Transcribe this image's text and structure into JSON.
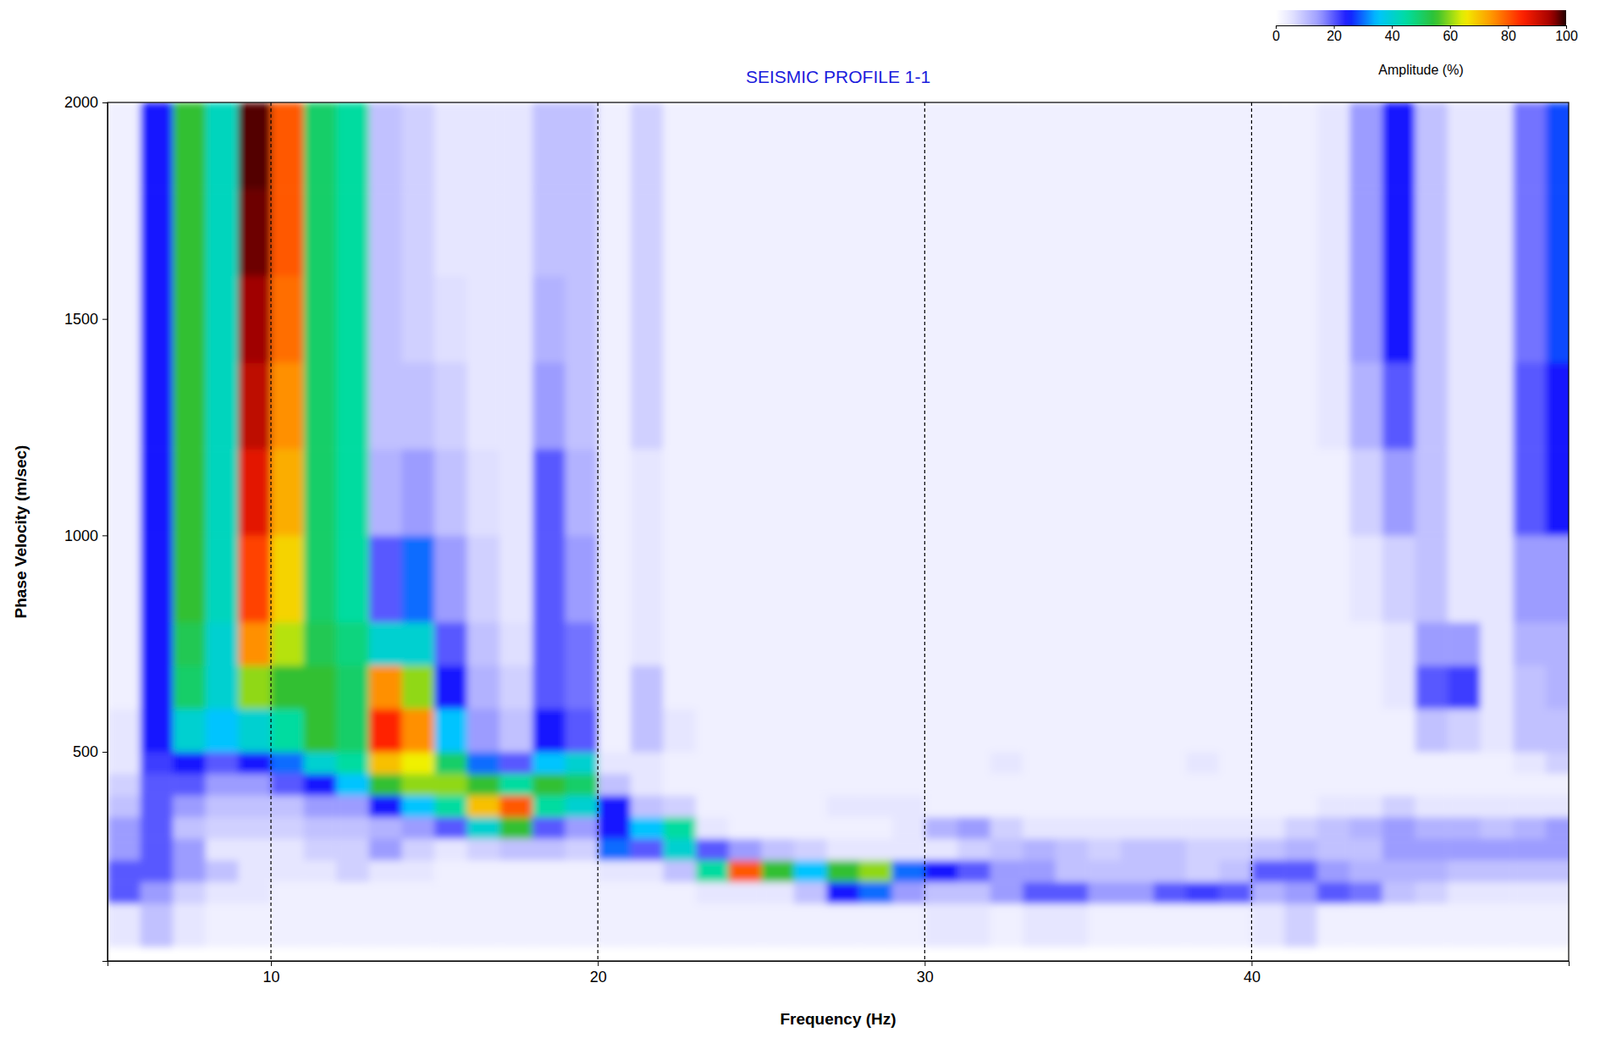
{
  "chart_data": {
    "type": "heatmap",
    "title": "SEISMIC PROFILE 1-1",
    "x_label": "Frequency (Hz)",
    "y_label": "Phase Velocity (m/sec)",
    "xlim": [
      5,
      49.7
    ],
    "ylim": [
      17,
      2000
    ],
    "xticks": [
      10,
      20,
      30,
      40
    ],
    "yticks": [
      500,
      1000,
      1500,
      2000
    ],
    "grid": "x",
    "x_edges": [
      5,
      6,
      7,
      8,
      9,
      10,
      11,
      12,
      13,
      14,
      15,
      16,
      17,
      18,
      19,
      20,
      21,
      22,
      23,
      24,
      25,
      26,
      27,
      28,
      29,
      30,
      31,
      32,
      33,
      34,
      35,
      36,
      37,
      38,
      39,
      40,
      41,
      42,
      43,
      44,
      45,
      46,
      47,
      48,
      49,
      50
    ],
    "y_edges": [
      50,
      150,
      200,
      250,
      300,
      350,
      400,
      450,
      500,
      600,
      700,
      800,
      1000,
      1200,
      1400,
      1600,
      1800,
      2000
    ],
    "z": [
      [
        5,
        20,
        20,
        15,
        15,
        10,
        8,
        5,
        5,
        3,
        3,
        3,
        3,
        3,
        3,
        3,
        3
      ],
      [
        10,
        15,
        20,
        20,
        20,
        20,
        20,
        22,
        25,
        25,
        25,
        25,
        25,
        25,
        25,
        25,
        25
      ],
      [
        5,
        8,
        15,
        15,
        10,
        15,
        20,
        25,
        40,
        50,
        52,
        55,
        55,
        55,
        55,
        55,
        55
      ],
      [
        3,
        5,
        10,
        5,
        8,
        10,
        15,
        20,
        35,
        40,
        40,
        42,
        42,
        42,
        42,
        42,
        42
      ],
      [
        3,
        5,
        5,
        5,
        8,
        10,
        15,
        25,
        40,
        60,
        75,
        82,
        88,
        92,
        95,
        97,
        98
      ],
      [
        3,
        3,
        5,
        5,
        8,
        10,
        20,
        30,
        45,
        55,
        62,
        68,
        72,
        75,
        78,
        80,
        80
      ],
      [
        3,
        3,
        5,
        8,
        10,
        15,
        25,
        40,
        55,
        55,
        52,
        50,
        50,
        50,
        50,
        50,
        50
      ],
      [
        3,
        3,
        8,
        8,
        10,
        15,
        35,
        45,
        50,
        50,
        48,
        45,
        45,
        45,
        45,
        45,
        45
      ],
      [
        3,
        3,
        5,
        15,
        12,
        25,
        55,
        70,
        85,
        75,
        40,
        20,
        12,
        10,
        10,
        10,
        10
      ],
      [
        3,
        3,
        5,
        8,
        15,
        35,
        60,
        65,
        75,
        60,
        40,
        30,
        15,
        10,
        8,
        8,
        8
      ],
      [
        3,
        3,
        3,
        5,
        20,
        45,
        60,
        50,
        35,
        25,
        20,
        15,
        10,
        8,
        6,
        5,
        5
      ],
      [
        3,
        3,
        3,
        8,
        40,
        70,
        55,
        30,
        15,
        12,
        10,
        8,
        6,
        5,
        5,
        5,
        5
      ],
      [
        3,
        3,
        3,
        10,
        55,
        80,
        45,
        20,
        10,
        8,
        6,
        5,
        5,
        5,
        5,
        5,
        5
      ],
      [
        3,
        3,
        3,
        10,
        20,
        45,
        55,
        35,
        25,
        20,
        20,
        20,
        20,
        15,
        12,
        10,
        10
      ],
      [
        3,
        3,
        3,
        8,
        15,
        40,
        50,
        40,
        20,
        18,
        18,
        15,
        12,
        10,
        10,
        10,
        10
      ],
      [
        3,
        3,
        5,
        30,
        25,
        25,
        10,
        5,
        3,
        3,
        3,
        3,
        3,
        3,
        3,
        3,
        3
      ],
      [
        3,
        3,
        5,
        20,
        35,
        10,
        5,
        5,
        10,
        10,
        5,
        5,
        5,
        8,
        8,
        8,
        8
      ],
      [
        3,
        3,
        10,
        40,
        45,
        8,
        3,
        3,
        5,
        3,
        3,
        3,
        3,
        3,
        3,
        3,
        3
      ],
      [
        3,
        5,
        45,
        20,
        5,
        3,
        3,
        3,
        3,
        3,
        3,
        3,
        3,
        3,
        3,
        3,
        3
      ],
      [
        3,
        5,
        80,
        15,
        3,
        3,
        3,
        3,
        3,
        3,
        3,
        3,
        3,
        3,
        3,
        3,
        3
      ],
      [
        3,
        5,
        55,
        10,
        3,
        3,
        3,
        3,
        3,
        3,
        3,
        3,
        3,
        3,
        3,
        3,
        3
      ],
      [
        3,
        10,
        35,
        8,
        3,
        3,
        3,
        3,
        3,
        3,
        3,
        3,
        3,
        3,
        3,
        3,
        3
      ],
      [
        3,
        25,
        55,
        5,
        3,
        5,
        3,
        3,
        3,
        3,
        3,
        3,
        3,
        3,
        3,
        3,
        3
      ],
      [
        3,
        30,
        60,
        5,
        3,
        5,
        3,
        3,
        3,
        3,
        3,
        3,
        3,
        3,
        3,
        3,
        3
      ],
      [
        3,
        15,
        30,
        5,
        5,
        5,
        3,
        3,
        3,
        3,
        3,
        3,
        3,
        3,
        3,
        3,
        3
      ],
      [
        5,
        10,
        25,
        5,
        12,
        3,
        3,
        3,
        3,
        3,
        3,
        3,
        3,
        3,
        3,
        3,
        3
      ],
      [
        5,
        10,
        20,
        8,
        15,
        3,
        3,
        3,
        3,
        3,
        3,
        3,
        3,
        3,
        3,
        3,
        3
      ],
      [
        3,
        15,
        15,
        10,
        8,
        3,
        3,
        5,
        3,
        3,
        3,
        3,
        3,
        3,
        3,
        3,
        3
      ],
      [
        5,
        20,
        15,
        12,
        5,
        3,
        3,
        3,
        3,
        3,
        3,
        3,
        3,
        3,
        3,
        3,
        3
      ],
      [
        5,
        20,
        10,
        10,
        5,
        3,
        3,
        3,
        3,
        3,
        3,
        3,
        3,
        3,
        3,
        3,
        3
      ],
      [
        3,
        15,
        10,
        8,
        5,
        3,
        3,
        3,
        3,
        3,
        3,
        3,
        3,
        3,
        3,
        3,
        3
      ],
      [
        3,
        15,
        10,
        10,
        5,
        3,
        3,
        3,
        3,
        3,
        3,
        3,
        3,
        3,
        3,
        3,
        3
      ],
      [
        3,
        20,
        10,
        10,
        5,
        3,
        3,
        3,
        3,
        3,
        3,
        3,
        3,
        3,
        3,
        3,
        3
      ],
      [
        3,
        22,
        8,
        8,
        5,
        3,
        3,
        5,
        3,
        3,
        3,
        3,
        3,
        3,
        3,
        3,
        3
      ],
      [
        3,
        20,
        10,
        8,
        5,
        3,
        3,
        3,
        3,
        3,
        3,
        3,
        3,
        3,
        3,
        3,
        3
      ],
      [
        5,
        12,
        20,
        10,
        5,
        3,
        3,
        3,
        3,
        3,
        3,
        3,
        3,
        3,
        3,
        3,
        3
      ],
      [
        8,
        15,
        20,
        12,
        8,
        3,
        3,
        3,
        3,
        3,
        3,
        3,
        3,
        3,
        3,
        3,
        3
      ],
      [
        3,
        20,
        15,
        10,
        10,
        5,
        3,
        3,
        3,
        3,
        3,
        3,
        3,
        5,
        5,
        5,
        5
      ],
      [
        3,
        18,
        12,
        10,
        12,
        5,
        3,
        3,
        3,
        3,
        3,
        5,
        8,
        12,
        15,
        15,
        15
      ],
      [
        3,
        10,
        12,
        15,
        15,
        8,
        3,
        3,
        3,
        5,
        5,
        8,
        15,
        20,
        25,
        25,
        25
      ],
      [
        3,
        8,
        12,
        15,
        12,
        5,
        3,
        3,
        10,
        20,
        15,
        10,
        10,
        10,
        10,
        10,
        10
      ],
      [
        3,
        5,
        10,
        15,
        12,
        5,
        3,
        3,
        8,
        22,
        15,
        5,
        5,
        5,
        5,
        5,
        5
      ],
      [
        3,
        5,
        10,
        15,
        10,
        5,
        3,
        3,
        5,
        5,
        5,
        5,
        5,
        5,
        5,
        5,
        5
      ],
      [
        3,
        5,
        10,
        15,
        12,
        5,
        3,
        5,
        10,
        10,
        12,
        15,
        20,
        20,
        18,
        18,
        18
      ],
      [
        3,
        5,
        10,
        15,
        15,
        5,
        3,
        8,
        10,
        12,
        12,
        15,
        25,
        25,
        28,
        28,
        28
      ]
    ],
    "colorbar": {
      "label": "Amplitude (%)",
      "range": [
        0,
        100
      ],
      "ticks": [
        0,
        20,
        40,
        60,
        80,
        100
      ]
    }
  }
}
